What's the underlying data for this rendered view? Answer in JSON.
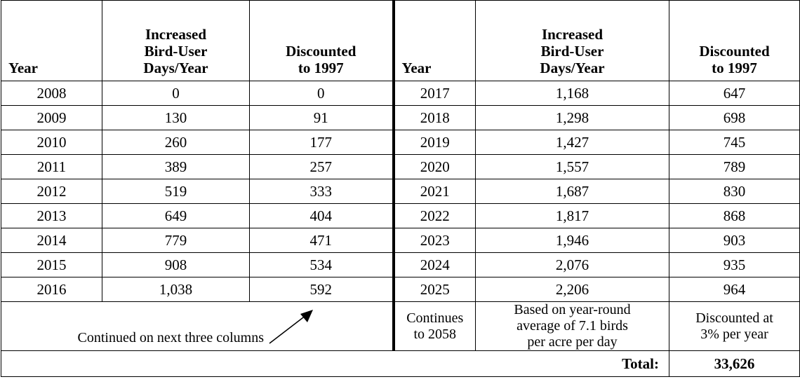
{
  "table": {
    "header": [
      [
        "Year"
      ],
      [
        "Increased",
        "Bird-User",
        "Days/Year"
      ],
      [
        "Discounted",
        "to 1997"
      ],
      [
        "Year"
      ],
      [
        "Increased",
        "Bird-User",
        "Days/Year"
      ],
      [
        "Discounted",
        "to 1997"
      ]
    ],
    "rows": [
      [
        "2008",
        "0",
        "0",
        "2017",
        "1,168",
        "647"
      ],
      [
        "2009",
        "130",
        "91",
        "2018",
        "1,298",
        "698"
      ],
      [
        "2010",
        "260",
        "177",
        "2019",
        "1,427",
        "745"
      ],
      [
        "2011",
        "389",
        "257",
        "2020",
        "1,557",
        "789"
      ],
      [
        "2012",
        "519",
        "333",
        "2021",
        "1,687",
        "830"
      ],
      [
        "2013",
        "649",
        "404",
        "2022",
        "1,817",
        "868"
      ],
      [
        "2014",
        "779",
        "471",
        "2023",
        "1,946",
        "903"
      ],
      [
        "2015",
        "908",
        "534",
        "2024",
        "2,076",
        "935"
      ],
      [
        "2016",
        "1,038",
        "592",
        "2025",
        "2,206",
        "964"
      ]
    ],
    "notes": [
      [
        "Continued on next three columns"
      ],
      [
        "Continues",
        "to 2058"
      ],
      [
        "Based on year-round",
        "average of 7.1 birds",
        "per acre per day"
      ],
      [
        "Discounted at",
        "3% per year"
      ]
    ],
    "total": {
      "label": "Total:",
      "value": "33,626"
    }
  }
}
